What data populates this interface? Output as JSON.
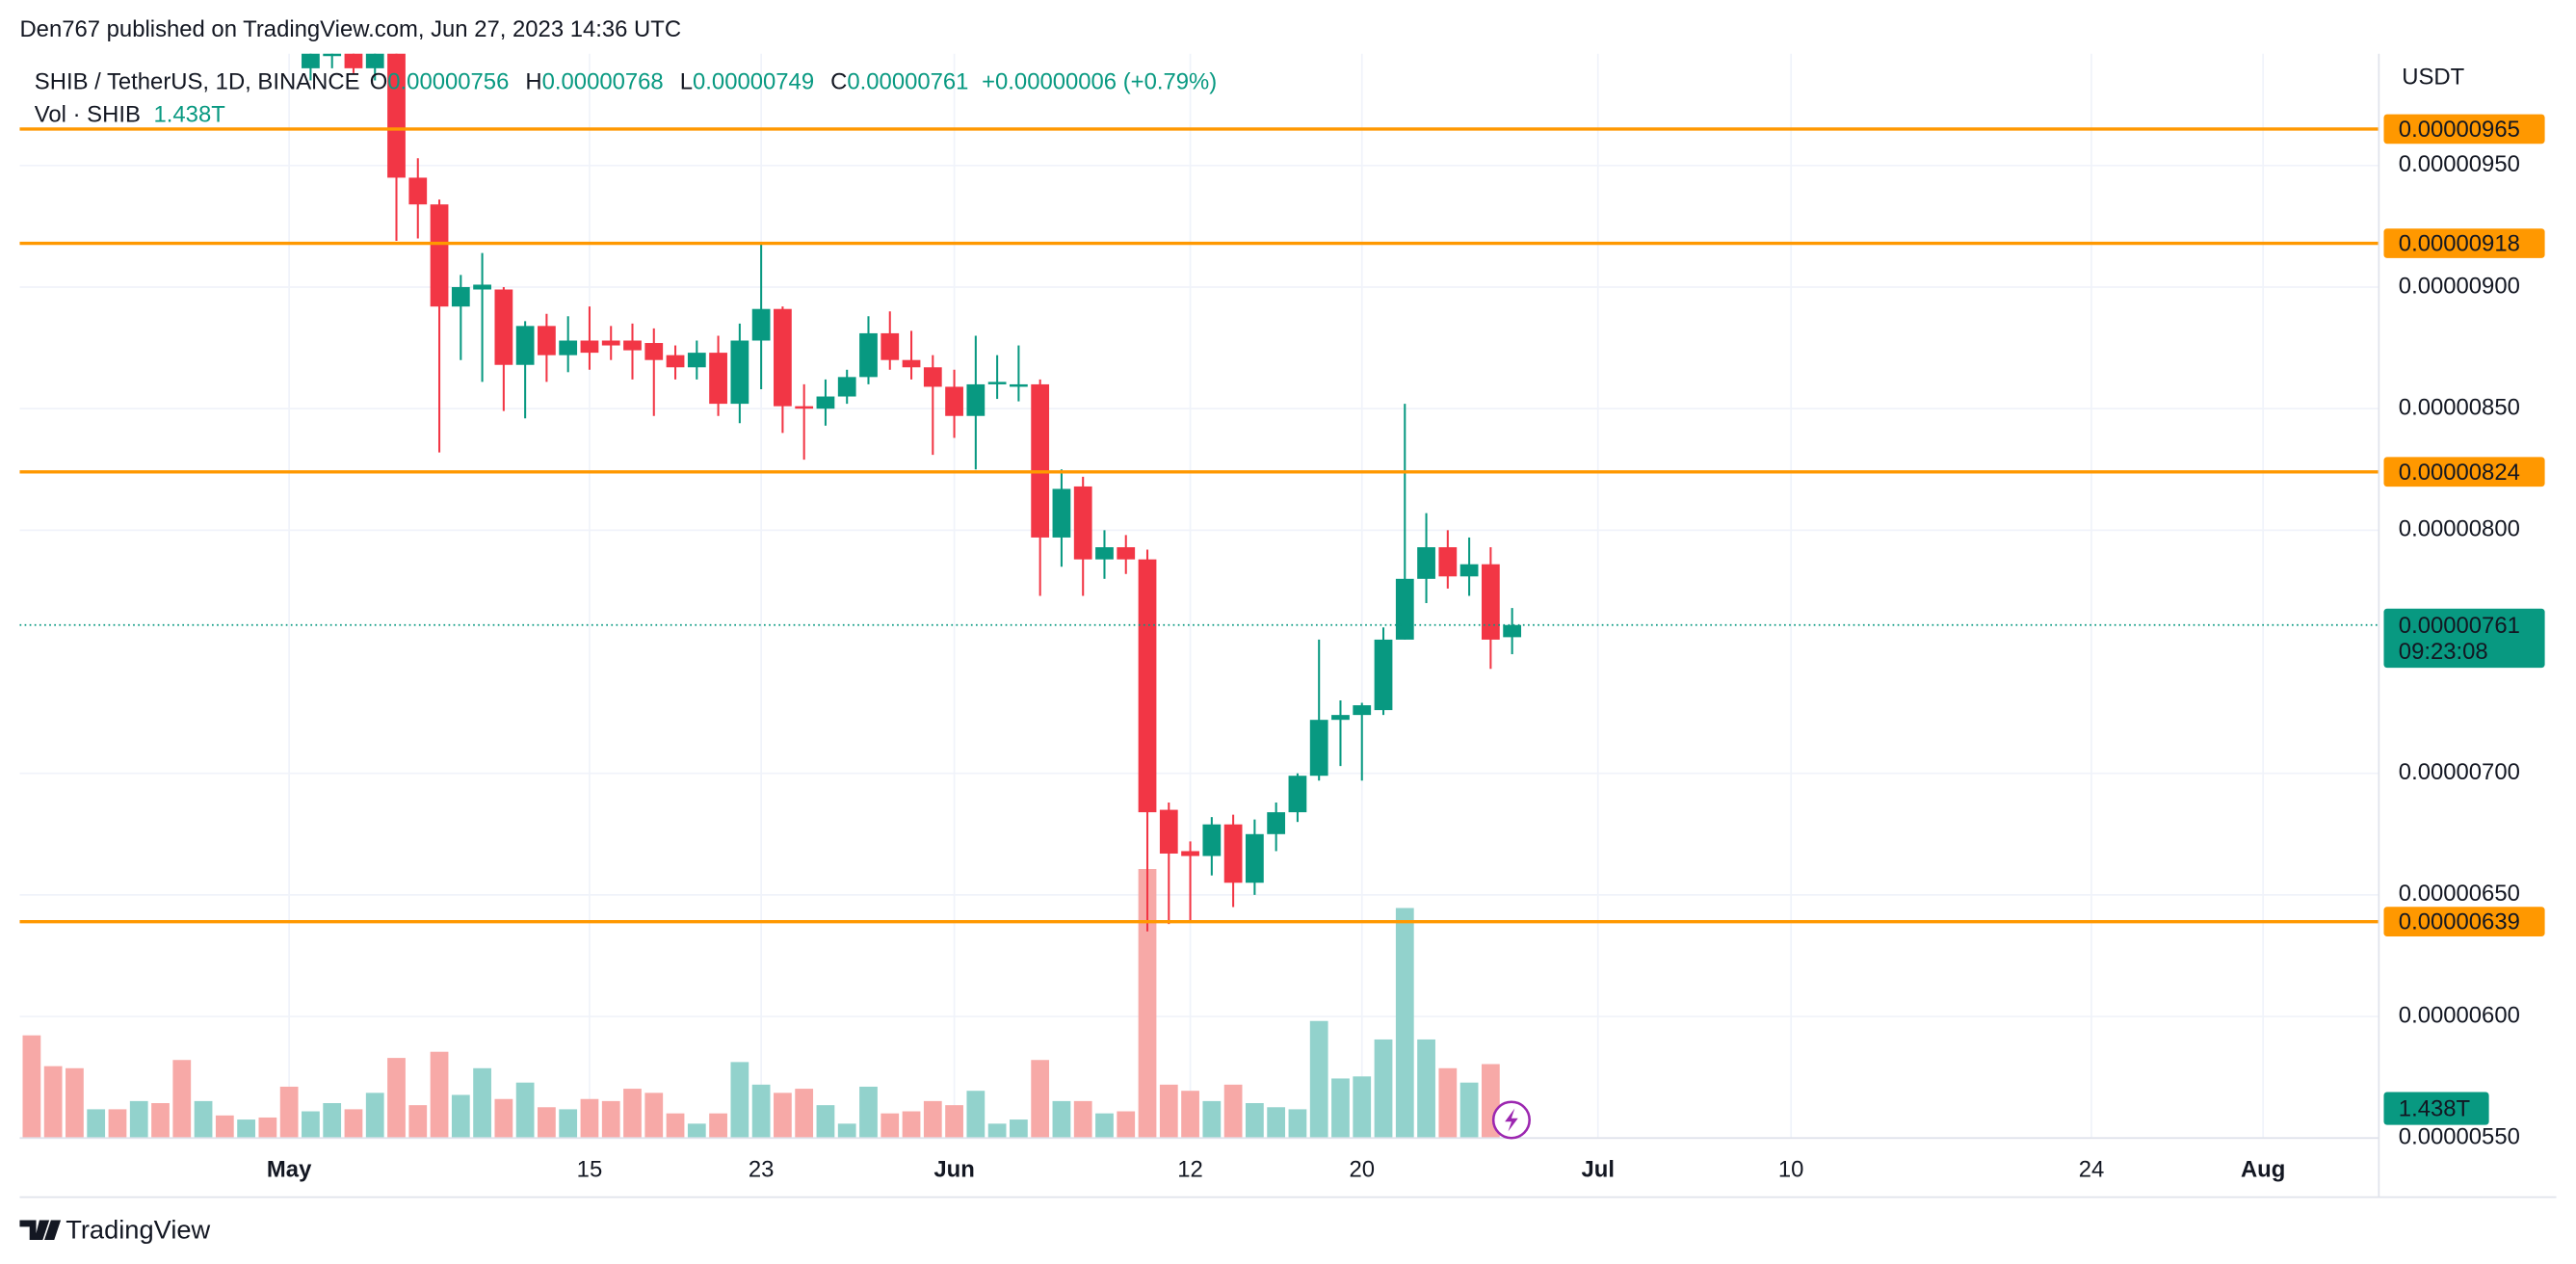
{
  "header": {
    "published": "Den767 published on TradingView.com, Jun 27, 2023 14:36 UTC"
  },
  "footer_brand": "TradingView",
  "chart_data": {
    "type": "candlestick",
    "legend": {
      "symbol": "SHIB / TetherUS, 1D, BINANCE",
      "o_label": "O",
      "o": "0.00000756",
      "h_label": "H",
      "h": "0.00000768",
      "l_label": "L",
      "l": "0.00000749",
      "c_label": "C",
      "c": "0.00000761",
      "change": "+0.00000006 (+0.79%)",
      "vol_label": "Vol · SHIB",
      "vol": "1.438T"
    },
    "currency": "USDT",
    "x": [
      "04-19",
      "04-20",
      "04-21",
      "04-22",
      "04-23",
      "04-24",
      "04-25",
      "04-26",
      "04-27",
      "04-28",
      "04-29",
      "04-30",
      "05-01",
      "05-02",
      "05-03",
      "05-04",
      "05-05",
      "05-06",
      "05-07",
      "05-08",
      "05-09",
      "05-10",
      "05-11",
      "05-12",
      "05-13",
      "05-14",
      "05-15",
      "05-16",
      "05-17",
      "05-18",
      "05-19",
      "05-20",
      "05-21",
      "05-22",
      "05-23",
      "05-24",
      "05-25",
      "05-26",
      "05-27",
      "05-28",
      "05-29",
      "05-30",
      "05-31",
      "06-01",
      "06-02",
      "06-03",
      "06-04",
      "06-05",
      "06-06",
      "06-07",
      "06-08",
      "06-09",
      "06-10",
      "06-11",
      "06-12",
      "06-13",
      "06-14",
      "06-15",
      "06-16",
      "06-17",
      "06-18",
      "06-19",
      "06-20",
      "06-21",
      "06-22",
      "06-23",
      "06-24",
      "06-25",
      "06-26",
      "06-27"
    ],
    "open": [
      null,
      null,
      null,
      null,
      null,
      null,
      null,
      null,
      null,
      null,
      null,
      null,
      null,
      9.9e-06,
      9.95e-06,
      1.005e-05,
      9.9e-06,
      1e-05,
      9.45e-06,
      9.34e-06,
      8.92e-06,
      8.99e-06,
      8.99e-06,
      8.68e-06,
      8.84e-06,
      8.72e-06,
      8.78e-06,
      8.78e-06,
      8.78e-06,
      8.77e-06,
      8.72e-06,
      8.67e-06,
      8.73e-06,
      8.52e-06,
      8.78e-06,
      8.91e-06,
      8.51e-06,
      8.5e-06,
      8.55e-06,
      8.63e-06,
      8.81e-06,
      8.7e-06,
      8.67e-06,
      8.59e-06,
      8.47e-06,
      8.6e-06,
      8.59e-06,
      8.6e-06,
      7.97e-06,
      8.18e-06,
      7.88e-06,
      7.93e-06,
      7.88e-06,
      6.85e-06,
      6.68e-06,
      6.66e-06,
      6.79e-06,
      6.55e-06,
      6.75e-06,
      6.84e-06,
      6.99e-06,
      7.22e-06,
      7.24e-06,
      7.26e-06,
      7.55e-06,
      7.8e-06,
      7.93e-06,
      7.81e-06,
      7.86e-06,
      7.56e-06
    ],
    "high": [
      null,
      null,
      null,
      null,
      null,
      null,
      null,
      null,
      null,
      null,
      null,
      null,
      null,
      1.01e-05,
      1.005e-05,
      1.01e-05,
      1.01e-05,
      1.005e-05,
      9.53e-06,
      9.36e-06,
      9.05e-06,
      9.14e-06,
      9e-06,
      8.86e-06,
      8.89e-06,
      8.88e-06,
      8.92e-06,
      8.84e-06,
      8.85e-06,
      8.83e-06,
      8.76e-06,
      8.78e-06,
      8.8e-06,
      8.85e-06,
      9.18e-06,
      8.92e-06,
      8.6e-06,
      8.62e-06,
      8.66e-06,
      8.88e-06,
      8.9e-06,
      8.82e-06,
      8.72e-06,
      8.66e-06,
      8.8e-06,
      8.72e-06,
      8.76e-06,
      8.62e-06,
      8.25e-06,
      8.22e-06,
      8e-06,
      7.98e-06,
      7.92e-06,
      6.88e-06,
      6.72e-06,
      6.82e-06,
      6.83e-06,
      6.81e-06,
      6.88e-06,
      7e-06,
      7.55e-06,
      7.3e-06,
      7.29e-06,
      7.6e-06,
      8.52e-06,
      8.07e-06,
      8e-06,
      7.97e-06,
      7.93e-06,
      7.68e-06
    ],
    "low": [
      null,
      null,
      null,
      null,
      null,
      null,
      null,
      null,
      null,
      null,
      null,
      null,
      null,
      9.85e-06,
      9.9e-06,
      9.88e-06,
      9.85e-06,
      9.19e-06,
      9.2e-06,
      8.32e-06,
      8.7e-06,
      8.61e-06,
      8.49e-06,
      8.46e-06,
      8.61e-06,
      8.65e-06,
      8.66e-06,
      8.7e-06,
      8.62e-06,
      8.47e-06,
      8.62e-06,
      8.62e-06,
      8.47e-06,
      8.44e-06,
      8.58e-06,
      8.4e-06,
      8.29e-06,
      8.43e-06,
      8.52e-06,
      8.6e-06,
      8.66e-06,
      8.62e-06,
      8.31e-06,
      8.38e-06,
      8.25e-06,
      8.54e-06,
      8.53e-06,
      7.73e-06,
      7.85e-06,
      7.73e-06,
      7.8e-06,
      7.82e-06,
      6.35e-06,
      6.38e-06,
      6.39e-06,
      6.58e-06,
      6.45e-06,
      6.5e-06,
      6.68e-06,
      6.8e-06,
      6.97e-06,
      7.03e-06,
      6.97e-06,
      7.24e-06,
      7.55e-06,
      7.7e-06,
      7.76e-06,
      7.73e-06,
      7.43e-06,
      7.49e-06
    ],
    "close": [
      null,
      null,
      null,
      null,
      null,
      null,
      null,
      null,
      null,
      null,
      null,
      null,
      null,
      1.005e-05,
      1e-05,
      9.9e-06,
      1.002e-05,
      9.45e-06,
      9.34e-06,
      8.92e-06,
      9e-06,
      9.01e-06,
      8.68e-06,
      8.84e-06,
      8.72e-06,
      8.78e-06,
      8.73e-06,
      8.76e-06,
      8.74e-06,
      8.7e-06,
      8.67e-06,
      8.73e-06,
      8.52e-06,
      8.78e-06,
      8.91e-06,
      8.51e-06,
      8.5e-06,
      8.55e-06,
      8.63e-06,
      8.81e-06,
      8.7e-06,
      8.67e-06,
      8.59e-06,
      8.47e-06,
      8.6e-06,
      8.61e-06,
      8.6e-06,
      7.97e-06,
      8.17e-06,
      7.88e-06,
      7.93e-06,
      7.88e-06,
      6.84e-06,
      6.67e-06,
      6.66e-06,
      6.79e-06,
      6.55e-06,
      6.75e-06,
      6.84e-06,
      6.99e-06,
      7.22e-06,
      7.24e-06,
      7.28e-06,
      7.55e-06,
      7.8e-06,
      7.93e-06,
      7.81e-06,
      7.86e-06,
      7.55e-06,
      7.61e-06
    ],
    "volume": [
      5.0,
      3.5,
      3.4,
      1.4,
      1.4,
      1.8,
      1.7,
      3.8,
      1.8,
      1.1,
      0.9,
      1.0,
      2.5,
      1.3,
      1.7,
      1.4,
      2.2,
      3.9,
      1.6,
      4.2,
      2.1,
      3.4,
      1.9,
      2.7,
      1.5,
      1.4,
      1.9,
      1.8,
      2.4,
      2.2,
      1.2,
      0.7,
      1.2,
      3.7,
      2.6,
      2.2,
      2.4,
      1.6,
      0.7,
      2.5,
      1.2,
      1.3,
      1.8,
      1.6,
      2.3,
      0.7,
      0.9,
      3.8,
      1.8,
      1.8,
      1.2,
      1.3,
      13.1,
      2.6,
      2.3,
      1.8,
      2.6,
      1.7,
      1.5,
      1.4,
      5.7,
      2.9,
      3.0,
      4.8,
      11.2,
      4.8,
      3.4,
      2.7,
      3.6,
      1.438
    ],
    "volume_colors": [
      "down",
      "down",
      "down",
      "up",
      "down",
      "up",
      "down",
      "down",
      "up",
      "down",
      "up",
      "down",
      "down",
      "up",
      "up",
      "down",
      "up",
      "down",
      "down",
      "down",
      "up",
      "up",
      "down",
      "up",
      "down",
      "up",
      "down",
      "down",
      "down",
      "down",
      "down",
      "up",
      "down",
      "up",
      "up",
      "down",
      "down",
      "up",
      "up",
      "up",
      "down",
      "down",
      "down",
      "down",
      "up",
      "up",
      "up",
      "down",
      "up",
      "down",
      "up",
      "down",
      "down",
      "down",
      "down",
      "up",
      "down",
      "up",
      "up",
      "up",
      "up",
      "up",
      "up",
      "up",
      "up",
      "up",
      "down",
      "up",
      "down",
      "up"
    ],
    "volume_label": "1.438T",
    "colors": {
      "up": "#089981",
      "down": "#f23645",
      "vol_up": "#92d2cc",
      "vol_down": "#f7a9a7",
      "level": "#ff9800"
    },
    "ylim": [
      5.5e-06,
      9.96e-06
    ],
    "y2lim": [
      0,
      52.8
    ],
    "yticks": [
      {
        "value": 5.5e-06,
        "label": "0.00000550"
      },
      {
        "value": 6e-06,
        "label": "0.00000600"
      },
      {
        "value": 6.5e-06,
        "label": "0.00000650"
      },
      {
        "value": 7e-06,
        "label": "0.00000700"
      },
      {
        "value": 8e-06,
        "label": "0.00000800"
      },
      {
        "value": 8.5e-06,
        "label": "0.00000850"
      },
      {
        "value": 9e-06,
        "label": "0.00000900"
      },
      {
        "value": 9.5e-06,
        "label": "0.00000950"
      }
    ],
    "xticks": [
      {
        "value": "05-01",
        "label": "May"
      },
      {
        "value": "05-15",
        "label": "15"
      },
      {
        "value": "05-23",
        "label": "23"
      },
      {
        "value": "06-01",
        "label": "Jun"
      },
      {
        "value": "06-12",
        "label": "12"
      },
      {
        "value": "06-20",
        "label": "20"
      },
      {
        "value": "07-01",
        "label": "Jul"
      },
      {
        "value": "07-10",
        "label": "10"
      },
      {
        "value": "07-24",
        "label": "24"
      },
      {
        "value": "08-01",
        "label": "Aug"
      }
    ],
    "levels": [
      {
        "value": 9.65e-06,
        "label": "0.00000965"
      },
      {
        "value": 9.18e-06,
        "label": "0.00000918"
      },
      {
        "value": 8.24e-06,
        "label": "0.00000824"
      },
      {
        "value": 6.39e-06,
        "label": "0.00000639"
      }
    ],
    "last_price": {
      "value": 7.61e-06,
      "label": "0.00000761",
      "countdown": "09:23:08"
    },
    "grid": true
  }
}
